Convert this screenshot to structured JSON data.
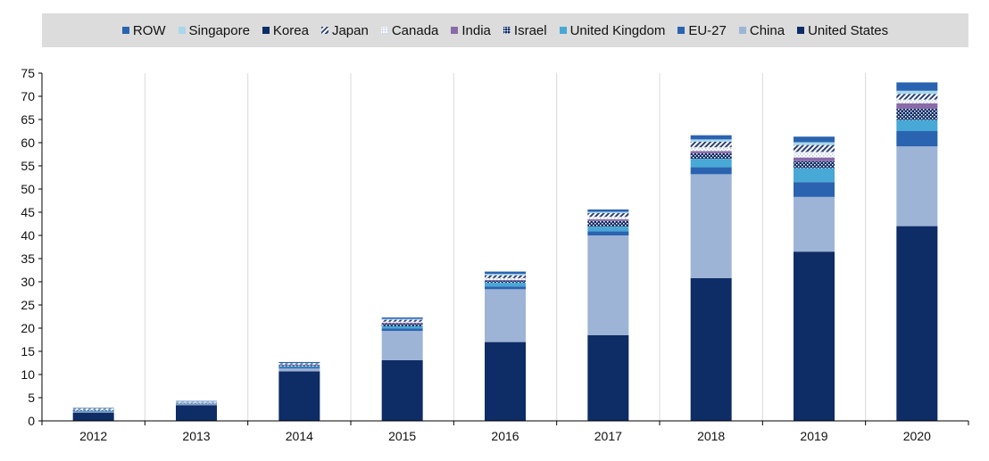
{
  "chart_data": {
    "type": "bar",
    "stacked": true,
    "categories": [
      "2012",
      "2013",
      "2014",
      "2015",
      "2016",
      "2017",
      "2018",
      "2019",
      "2020"
    ],
    "ylim": [
      0,
      75
    ],
    "yticks": [
      "0",
      "5",
      "10",
      "15",
      "20",
      "25",
      "30",
      "35",
      "40",
      "45",
      "50",
      "55",
      "60",
      "65",
      "70",
      "75"
    ],
    "grid": "vertical",
    "legend_position": "top",
    "legend_order": [
      "ROW",
      "Singapore",
      "Korea",
      "Japan",
      "Canada",
      "India",
      "Israel",
      "United Kingdom",
      "EU-27",
      "China",
      "United States"
    ],
    "series": [
      {
        "name": "United States",
        "color": "#0e2c66",
        "pattern": "solid",
        "values": [
          1.8,
          3.4,
          10.7,
          13.1,
          17.0,
          18.5,
          30.8,
          36.5,
          42.0
        ]
      },
      {
        "name": "China",
        "color": "#9db4d6",
        "pattern": "solid",
        "values": [
          0.2,
          0.2,
          0.6,
          6.3,
          11.4,
          21.5,
          22.4,
          11.8,
          17.2
        ]
      },
      {
        "name": "EU-27",
        "color": "#2a63b0",
        "pattern": "solid",
        "values": [
          0.1,
          0.1,
          0.3,
          0.5,
          0.6,
          0.9,
          1.5,
          3.2,
          3.3
        ]
      },
      {
        "name": "United Kingdom",
        "color": "#48a8d6",
        "pattern": "solid",
        "values": [
          0.1,
          0.1,
          0.2,
          0.5,
          0.8,
          1.0,
          1.8,
          3.0,
          2.4
        ]
      },
      {
        "name": "Israel",
        "color": "#0e2c66",
        "pattern": "dots",
        "values": [
          0.1,
          0.1,
          0.2,
          0.6,
          0.4,
          1.2,
          1.2,
          1.5,
          2.4
        ]
      },
      {
        "name": "India",
        "color": "#8a6aa8",
        "pattern": "solid",
        "values": [
          0.0,
          0.0,
          0.1,
          0.2,
          0.2,
          0.4,
          0.5,
          0.8,
          1.2
        ]
      },
      {
        "name": "Canada",
        "color": "#b7c9e6",
        "pattern": "dots",
        "values": [
          0.1,
          0.1,
          0.1,
          0.2,
          0.4,
          0.5,
          0.8,
          1.2,
          0.8
        ]
      },
      {
        "name": "Japan",
        "color": "#2a3f7a",
        "pattern": "hatch",
        "values": [
          0.2,
          0.1,
          0.2,
          0.4,
          0.6,
          0.8,
          1.2,
          1.5,
          1.2
        ]
      },
      {
        "name": "Korea",
        "color": "#0e2c66",
        "pattern": "solid",
        "values": [
          0.0,
          0.0,
          0.0,
          0.0,
          0.0,
          0.0,
          0.0,
          0.0,
          0.0
        ]
      },
      {
        "name": "Singapore",
        "color": "#a9d6ea",
        "pattern": "solid",
        "values": [
          0.1,
          0.1,
          0.1,
          0.2,
          0.3,
          0.3,
          0.5,
          0.6,
          0.7
        ]
      },
      {
        "name": "ROW",
        "color": "#2a63b0",
        "pattern": "solid",
        "values": [
          0.1,
          0.1,
          0.2,
          0.3,
          0.5,
          0.5,
          0.9,
          1.2,
          1.8
        ]
      }
    ]
  }
}
